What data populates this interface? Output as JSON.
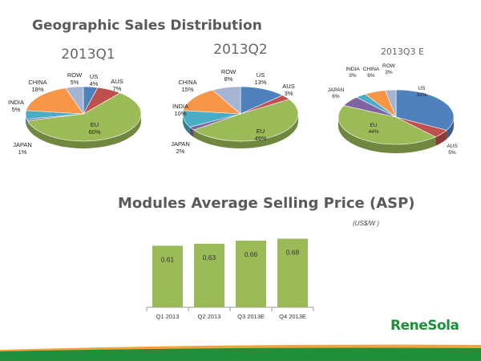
{
  "titles": {
    "geo": "Geographic Sales Distribution",
    "asp": "Modules Average Selling Price (ASP)"
  },
  "asp_unit": "(US$/W )",
  "logo": "ReneSola",
  "colors": {
    "US": "#4f81bd",
    "AUS": "#c0504d",
    "EU": "#9bbb59",
    "JAPAN": "#8064a2",
    "INDIA": "#4bacc6",
    "CHINA": "#f79646",
    "ROW": "#a6b4d4",
    "bar": "#9bbb59",
    "footer_orange": "#f2a340",
    "footer_green": "#1f8f3a"
  },
  "chart_data": [
    {
      "type": "pie",
      "title": "2013Q1",
      "slices": [
        {
          "label": "US",
          "value": 4,
          "pct": "4%"
        },
        {
          "label": "AUS",
          "value": 7,
          "pct": "7%"
        },
        {
          "label": "EU",
          "value": 60,
          "pct": "60%"
        },
        {
          "label": "JAPAN",
          "value": 1,
          "pct": "1%"
        },
        {
          "label": "INDIA",
          "value": 5,
          "pct": "5%"
        },
        {
          "label": "CHINA",
          "value": 18,
          "pct": "18%"
        },
        {
          "label": "ROW",
          "value": 5,
          "pct": "5%"
        }
      ]
    },
    {
      "type": "pie",
      "title": "2013Q2",
      "slices": [
        {
          "label": "US",
          "value": 13,
          "pct": "13%"
        },
        {
          "label": "AUS",
          "value": 3,
          "pct": "3%"
        },
        {
          "label": "EU",
          "value": 49,
          "pct": "49%"
        },
        {
          "label": "JAPAN",
          "value": 2,
          "pct": "2%"
        },
        {
          "label": "INDIA",
          "value": 10,
          "pct": "10%"
        },
        {
          "label": "CHINA",
          "value": 15,
          "pct": "15%"
        },
        {
          "label": "ROW",
          "value": 8,
          "pct": "8%"
        }
      ]
    },
    {
      "type": "pie",
      "title": "2013Q3 E",
      "slices": [
        {
          "label": "US",
          "value": 33,
          "pct": "33%"
        },
        {
          "label": "AUS",
          "value": 5,
          "pct": "5%"
        },
        {
          "label": "EU",
          "value": 44,
          "pct": "44%"
        },
        {
          "label": "JAPAN",
          "value": 6,
          "pct": "6%"
        },
        {
          "label": "INDIA",
          "value": 3,
          "pct": "3%"
        },
        {
          "label": "CHINA",
          "value": 6,
          "pct": "6%"
        },
        {
          "label": "ROW",
          "value": 3,
          "pct": "3%"
        }
      ]
    },
    {
      "type": "bar",
      "title": "Modules Average Selling Price (ASP)",
      "ylabel": "(US$/W )",
      "categories": [
        "Q1 2013",
        "Q2 2013",
        "Q3 2013E",
        "Q4 2013E"
      ],
      "values": [
        0.61,
        0.63,
        0.66,
        0.68
      ],
      "labels": [
        "0.61",
        "0.63",
        "0.66",
        "0.68"
      ],
      "ylim": [
        0,
        0.7
      ]
    }
  ]
}
